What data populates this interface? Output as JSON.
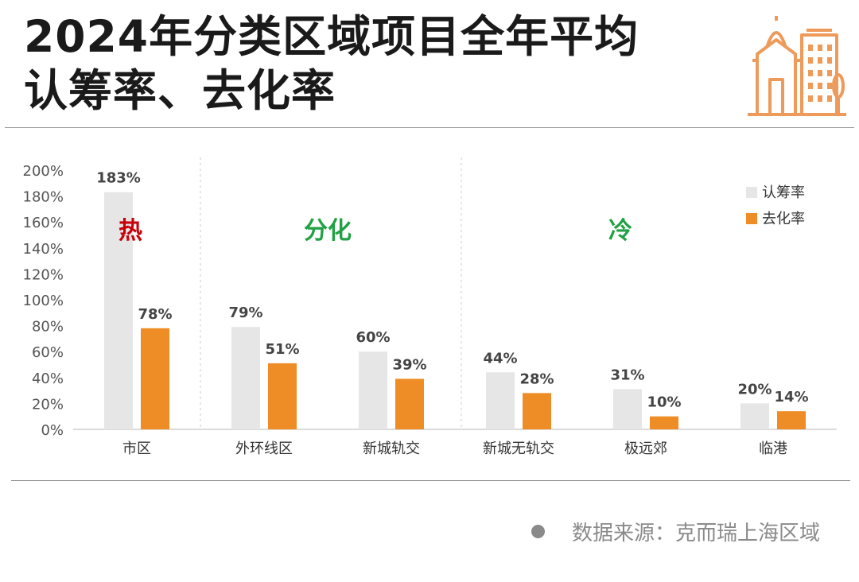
{
  "header": {
    "title_line1": "2024年分类区域项目全年平均",
    "title_line2": "认筹率、去化率"
  },
  "footer": {
    "source": "数据来源：克而瑞上海区域"
  },
  "colors": {
    "subscription": "#e6e6e6",
    "sellthrough": "#ee8d25",
    "hot": "#c8000a",
    "cool": "#22a144",
    "icon": "#ee9a5a"
  },
  "chart_data": {
    "type": "bar",
    "categories": [
      "市区",
      "外环线区",
      "新城轨交",
      "新城无轨交",
      "极远郊",
      "临港"
    ],
    "series": [
      {
        "name": "认筹率",
        "values": [
          183,
          79,
          60,
          44,
          31,
          20
        ],
        "labels": [
          "183%",
          "79%",
          "60%",
          "44%",
          "31%",
          "20%"
        ]
      },
      {
        "name": "去化率",
        "values": [
          78,
          51,
          39,
          28,
          10,
          14
        ],
        "labels": [
          "78%",
          "51%",
          "39%",
          "28%",
          "10%",
          "14%"
        ]
      }
    ],
    "y_ticks": [
      "0%",
      "20%",
      "40%",
      "60%",
      "80%",
      "100%",
      "120%",
      "140%",
      "160%",
      "180%",
      "200%"
    ],
    "ylim": [
      0,
      200
    ],
    "legend_position": "top-right",
    "annotations": [
      {
        "text": "热",
        "group": "hot"
      },
      {
        "text": "分化",
        "group": "divided"
      },
      {
        "text": "冷",
        "group": "cool"
      }
    ]
  }
}
